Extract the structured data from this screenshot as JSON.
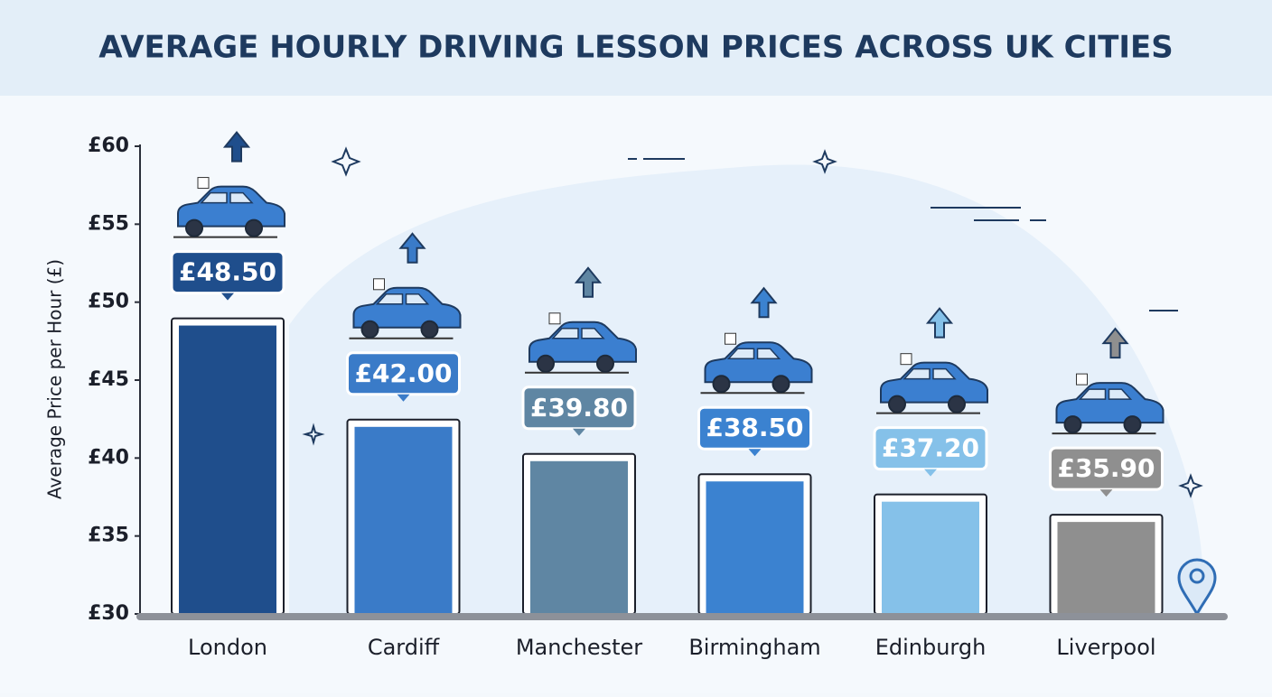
{
  "chart_data": {
    "type": "bar",
    "title": "AVERAGE HOURLY DRIVING LESSON PRICES ACROSS UK CITIES",
    "y_label": "Average Price per Hour (£)",
    "categories": [
      "London",
      "Cardiff",
      "Manchester",
      "Birmingham",
      "Edinburgh",
      "Liverpool"
    ],
    "values": [
      48.5,
      42,
      39.8,
      38.5,
      37.2,
      35.9
    ],
    "value_labels": [
      "£48.50",
      "£42.00",
      "£39.80",
      "£38.50",
      "£37.20",
      "£35.90"
    ],
    "colors": [
      "#1f4e8c",
      "#3a7bc8",
      "#5f86a3",
      "#3b82d0",
      "#85c1e9",
      "#8f8f8f"
    ],
    "ylim": [
      30,
      60
    ],
    "yticks": [
      {
        "value": 30,
        "label": "£30"
      },
      {
        "value": 35,
        "label": "£35"
      },
      {
        "value": 40,
        "label": "£40"
      },
      {
        "value": 45,
        "label": "£45"
      },
      {
        "value": 50,
        "label": "£50"
      },
      {
        "value": 55,
        "label": "£55"
      },
      {
        "value": 60,
        "label": "£60"
      }
    ]
  }
}
